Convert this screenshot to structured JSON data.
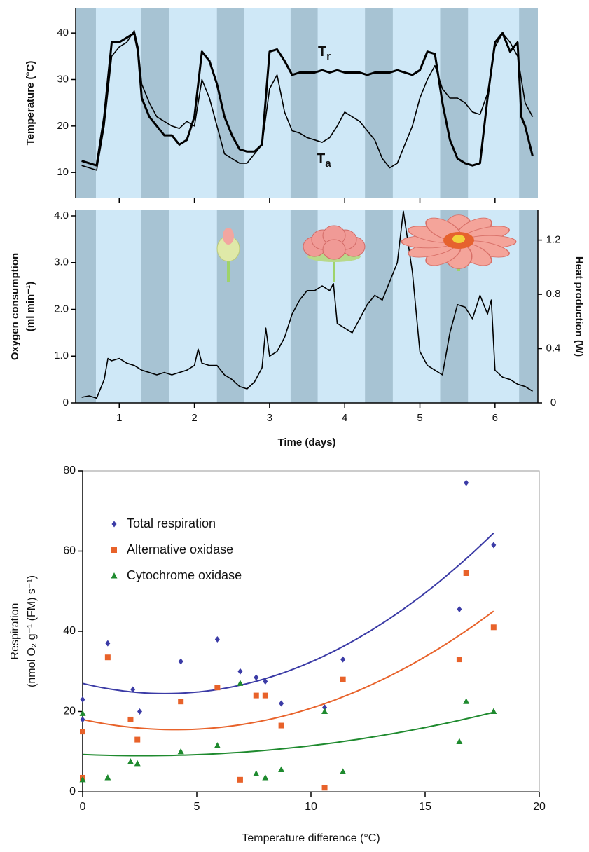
{
  "chart_data": [
    {
      "type": "line",
      "ylabel": "Temperature (°C)",
      "xlim": [
        0.42,
        6.57
      ],
      "ylim": [
        4.6,
        45.3
      ],
      "yticks": [
        10,
        20,
        30,
        40
      ],
      "night_bands": [
        [
          0.42,
          0.69
        ],
        [
          1.29,
          1.66
        ],
        [
          2.3,
          2.66
        ],
        [
          3.28,
          3.64
        ],
        [
          4.27,
          4.64
        ],
        [
          5.27,
          5.64
        ],
        [
          6.32,
          6.57
        ]
      ],
      "x": [
        0.5,
        0.6,
        0.7,
        0.8,
        0.9,
        1.0,
        1.1,
        1.2,
        1.25,
        1.3,
        1.4,
        1.5,
        1.6,
        1.7,
        1.8,
        1.9,
        2.0,
        2.1,
        2.2,
        2.3,
        2.4,
        2.5,
        2.6,
        2.7,
        2.8,
        2.9,
        3.0,
        3.1,
        3.2,
        3.3,
        3.4,
        3.5,
        3.6,
        3.7,
        3.8,
        3.9,
        4.0,
        4.1,
        4.2,
        4.3,
        4.4,
        4.5,
        4.6,
        4.7,
        4.8,
        4.9,
        5.0,
        5.1,
        5.2,
        5.3,
        5.4,
        5.5,
        5.6,
        5.7,
        5.8,
        5.9,
        6.0,
        6.1,
        6.2,
        6.3,
        6.35,
        6.4,
        6.5
      ],
      "series": [
        {
          "name": "Tr",
          "color": "#000000",
          "values": [
            12.5,
            12,
            11.5,
            22,
            38,
            38,
            39,
            40,
            36,
            26,
            22,
            20,
            18,
            18,
            16,
            17,
            22,
            36,
            34,
            29,
            22,
            18,
            15,
            14.5,
            14.5,
            16,
            36,
            36.5,
            34,
            31,
            31.5,
            31.5,
            31.5,
            32,
            31.5,
            32,
            31.5,
            31.5,
            31.5,
            31,
            31.5,
            31.5,
            31.5,
            32,
            31.5,
            31,
            32,
            36,
            35.5,
            25,
            17,
            13,
            12,
            11.5,
            12,
            26,
            38,
            40,
            36,
            38,
            22,
            20,
            13.5
          ]
        },
        {
          "name": "Ta",
          "color": "#000000",
          "values": [
            11.5,
            11,
            10.5,
            20,
            35,
            37,
            38,
            40.5,
            37,
            29,
            25,
            22,
            21,
            20,
            19.5,
            21,
            20,
            30,
            26,
            20,
            14,
            13,
            12,
            12,
            14,
            16,
            28,
            31,
            23,
            19,
            18.5,
            17.5,
            17,
            16.5,
            17.5,
            20,
            23,
            22,
            21,
            19,
            17,
            13,
            11,
            12,
            16,
            20,
            26,
            30,
            33,
            28,
            26,
            26,
            25,
            23,
            22.5,
            27,
            37,
            40,
            38,
            35,
            30,
            25,
            22
          ]
        }
      ]
    },
    {
      "type": "line",
      "ylabel": [
        "Oxygen consumption",
        "(ml min⁻¹)"
      ],
      "y2label": "Heat production (W)",
      "xlabel": "Time (days)",
      "xlim": [
        0.42,
        6.57
      ],
      "xticks": [
        1,
        2,
        3,
        4,
        5,
        6
      ],
      "ylim": [
        0,
        4.12
      ],
      "yticks": [
        0,
        {
          "value": 1,
          "label": "1.0"
        },
        {
          "value": 2,
          "label": "2.0"
        },
        {
          "value": 3,
          "label": "3.0"
        },
        {
          "value": 4,
          "label": "4.0"
        }
      ],
      "y2lim": [
        0,
        1.42
      ],
      "y2ticks": [
        0,
        0.4,
        0.8,
        1.2
      ],
      "night_bands": [
        [
          0.42,
          0.69
        ],
        [
          1.29,
          1.66
        ],
        [
          2.3,
          2.66
        ],
        [
          3.28,
          3.64
        ],
        [
          4.27,
          4.64
        ],
        [
          5.27,
          5.64
        ],
        [
          6.32,
          6.57
        ]
      ],
      "x": [
        0.5,
        0.6,
        0.7,
        0.8,
        0.85,
        0.9,
        1.0,
        1.1,
        1.2,
        1.3,
        1.4,
        1.5,
        1.6,
        1.7,
        1.8,
        1.9,
        2.0,
        2.05,
        2.1,
        2.2,
        2.3,
        2.4,
        2.5,
        2.6,
        2.7,
        2.8,
        2.9,
        2.95,
        3.0,
        3.1,
        3.2,
        3.3,
        3.4,
        3.5,
        3.6,
        3.7,
        3.8,
        3.85,
        3.9,
        4.0,
        4.1,
        4.2,
        4.3,
        4.4,
        4.5,
        4.6,
        4.7,
        4.78,
        4.9,
        5.0,
        5.1,
        5.2,
        5.3,
        5.4,
        5.5,
        5.6,
        5.7,
        5.8,
        5.9,
        5.95,
        6.0,
        6.1,
        6.2,
        6.3,
        6.4,
        6.5
      ],
      "series": [
        {
          "color": "#000000",
          "values": [
            0.12,
            0.15,
            0.1,
            0.5,
            0.95,
            0.9,
            0.95,
            0.85,
            0.8,
            0.7,
            0.65,
            0.6,
            0.65,
            0.6,
            0.65,
            0.7,
            0.8,
            1.15,
            0.85,
            0.8,
            0.8,
            0.6,
            0.5,
            0.35,
            0.3,
            0.45,
            0.75,
            1.6,
            1.0,
            1.1,
            1.4,
            1.9,
            2.2,
            2.4,
            2.4,
            2.5,
            2.4,
            2.55,
            1.7,
            1.6,
            1.5,
            1.8,
            2.1,
            2.3,
            2.2,
            2.6,
            3.0,
            4.1,
            2.8,
            1.1,
            0.8,
            0.7,
            0.6,
            1.5,
            2.1,
            2.05,
            1.8,
            2.3,
            1.9,
            2.2,
            0.7,
            0.55,
            0.5,
            0.4,
            0.35,
            0.25
          ]
        }
      ]
    },
    {
      "type": "scatter",
      "ylabel": [
        "Respiration",
        "(nmol O₂ g⁻¹ (FM) s⁻¹)"
      ],
      "xlabel": "Temperature difference (°C)",
      "xlim": [
        0,
        20
      ],
      "xticks": [
        0,
        5,
        10,
        15,
        20
      ],
      "ylim": [
        0,
        80
      ],
      "yticks": [
        0,
        20,
        40,
        60,
        80
      ],
      "legend": "upper left",
      "series": [
        {
          "name": "Total respiration",
          "color": "#3b3ba6",
          "marker": "diamond",
          "x": [
            0,
            0,
            1.1,
            2.2,
            2.5,
            4.3,
            5.9,
            6.9,
            7.6,
            8,
            8.7,
            10.6,
            11.4,
            16.5,
            16.8,
            18
          ],
          "values": [
            23,
            18,
            37,
            25.5,
            20,
            32.5,
            38,
            30,
            28.5,
            27.5,
            22,
            21,
            33,
            45.5,
            77,
            61.5
          ],
          "fit_coefficients": [
            0.1935,
            -1.399,
            27
          ],
          "fit_xlim": [
            0,
            18
          ]
        },
        {
          "name": "Alternative oxidase",
          "color": "#e8622a",
          "marker": "square",
          "x": [
            0,
            0,
            1.1,
            2.1,
            2.4,
            4.3,
            5.9,
            6.9,
            7.6,
            8,
            8.7,
            10.6,
            11.4,
            16.5,
            16.8,
            18
          ],
          "values": [
            15,
            3.5,
            33.5,
            18,
            13,
            22.5,
            26,
            3,
            24,
            24,
            16.5,
            1,
            28,
            33,
            54.5,
            41
          ],
          "fit_coefficients": [
            0.1523,
            -1.241,
            18
          ],
          "fit_xlim": [
            0,
            18
          ]
        },
        {
          "name": "Cytochrome oxidase",
          "color": "#1e8a2e",
          "marker": "triangle",
          "x": [
            0,
            0,
            1.1,
            2.1,
            2.4,
            4.3,
            5.9,
            6.9,
            7.6,
            8,
            8.7,
            10.6,
            11.4,
            16.5,
            16.8,
            18
          ],
          "values": [
            19.5,
            3,
            3.5,
            7.5,
            7,
            10,
            11.5,
            27,
            4.5,
            3.5,
            5.5,
            20,
            5,
            12.5,
            22.5,
            20
          ],
          "fit_coefficients": [
            0.04556,
            -0.2367,
            9.3
          ],
          "fit_xlim": [
            0,
            18
          ]
        }
      ]
    }
  ]
}
